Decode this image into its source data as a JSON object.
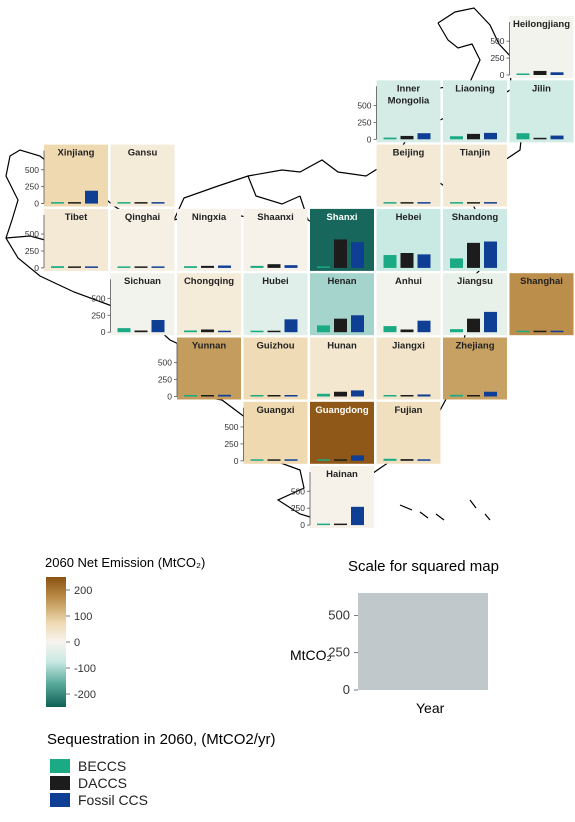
{
  "chart_data": {
    "type": "bar",
    "grid_map": true,
    "categories": [
      "BECCS",
      "DACCS",
      "Fossil CCS"
    ],
    "ylim": [
      0,
      650
    ],
    "yticks": [
      0,
      250,
      500
    ],
    "series_colors": {
      "BECCS": "#1aaa84",
      "DACCS": "#1c1c1c",
      "Fossil CCS": "#0f3e95"
    },
    "colorbar": {
      "title": "2060 Net Emission (MtCO₂)",
      "ticks": [
        200,
        100,
        0,
        -100,
        -200
      ],
      "tick_labels": [
        "200",
        "100",
        "0",
        "-100",
        "-200"
      ]
    },
    "provinces": [
      {
        "name": "Heilongjiang",
        "col": 7,
        "row": 0,
        "net": -5,
        "axis": true,
        "values": [
          20,
          60,
          40
        ]
      },
      {
        "name": "Inner Mongolia",
        "col": 5,
        "row": 1,
        "net": -45,
        "axis": true,
        "values": [
          25,
          50,
          90
        ]
      },
      {
        "name": "Liaoning",
        "col": 6,
        "row": 1,
        "net": -45,
        "axis": false,
        "values": [
          45,
          80,
          95
        ]
      },
      {
        "name": "Jilin",
        "col": 7,
        "row": 1,
        "net": -50,
        "axis": false,
        "values": [
          90,
          20,
          55
        ]
      },
      {
        "name": "Xinjiang",
        "col": 0,
        "row": 2,
        "net": 60,
        "axis": true,
        "values": [
          15,
          15,
          190
        ]
      },
      {
        "name": "Gansu",
        "col": 1,
        "row": 2,
        "net": 20,
        "axis": false,
        "values": [
          8,
          5,
          15
        ]
      },
      {
        "name": "Beijing",
        "col": 5,
        "row": 2,
        "net": 25,
        "axis": false,
        "values": [
          5,
          5,
          8
        ]
      },
      {
        "name": "Tianjin",
        "col": 6,
        "row": 2,
        "net": 25,
        "axis": false,
        "values": [
          5,
          5,
          5
        ]
      },
      {
        "name": "Tibet",
        "col": 0,
        "row": 3,
        "net": 25,
        "axis": true,
        "values": [
          25,
          5,
          10
        ]
      },
      {
        "name": "Qinghai",
        "col": 1,
        "row": 3,
        "net": 10,
        "axis": false,
        "values": [
          15,
          5,
          8
        ]
      },
      {
        "name": "Ningxia",
        "col": 2,
        "row": 3,
        "net": 5,
        "axis": false,
        "values": [
          25,
          30,
          35
        ]
      },
      {
        "name": "Shaanxi",
        "col": 3,
        "row": 3,
        "net": 5,
        "axis": false,
        "values": [
          30,
          55,
          40
        ]
      },
      {
        "name": "Shanxi",
        "col": 4,
        "row": 3,
        "net": -240,
        "axis": false,
        "values": [
          20,
          420,
          380
        ]
      },
      {
        "name": "Hebei",
        "col": 5,
        "row": 3,
        "net": -60,
        "axis": false,
        "values": [
          190,
          220,
          200
        ]
      },
      {
        "name": "Shandong",
        "col": 6,
        "row": 3,
        "net": -55,
        "axis": false,
        "values": [
          140,
          370,
          390
        ]
      },
      {
        "name": "Sichuan",
        "col": 1,
        "row": 4,
        "net": -5,
        "axis": true,
        "values": [
          60,
          25,
          180
        ]
      },
      {
        "name": "Chongqing",
        "col": 2,
        "row": 4,
        "net": 20,
        "axis": false,
        "values": [
          25,
          40,
          20
        ]
      },
      {
        "name": "Hubei",
        "col": 3,
        "row": 4,
        "net": -30,
        "axis": false,
        "values": [
          15,
          20,
          190
        ]
      },
      {
        "name": "Henan",
        "col": 4,
        "row": 4,
        "net": -90,
        "axis": false,
        "values": [
          100,
          200,
          250
        ]
      },
      {
        "name": "Anhui",
        "col": 5,
        "row": 4,
        "net": -5,
        "axis": false,
        "values": [
          90,
          40,
          170
        ]
      },
      {
        "name": "Jiangsu",
        "col": 6,
        "row": 4,
        "net": -20,
        "axis": false,
        "values": [
          45,
          200,
          300
        ]
      },
      {
        "name": "Shanghai",
        "col": 7,
        "row": 4,
        "net": 145,
        "axis": false,
        "values": [
          5,
          5,
          15
        ]
      },
      {
        "name": "Yunnan",
        "col": 2,
        "row": 5,
        "net": 130,
        "axis": true,
        "values": [
          15,
          5,
          25
        ]
      },
      {
        "name": "Guizhou",
        "col": 3,
        "row": 5,
        "net": 55,
        "axis": false,
        "values": [
          20,
          20,
          20
        ]
      },
      {
        "name": "Hunan",
        "col": 4,
        "row": 5,
        "net": 30,
        "axis": false,
        "values": [
          40,
          70,
          90
        ]
      },
      {
        "name": "Jiangxi",
        "col": 5,
        "row": 5,
        "net": 35,
        "axis": false,
        "values": [
          20,
          20,
          30
        ]
      },
      {
        "name": "Zhejiang",
        "col": 6,
        "row": 5,
        "net": 125,
        "axis": false,
        "values": [
          25,
          5,
          70
        ]
      },
      {
        "name": "Guangxi",
        "col": 3,
        "row": 6,
        "net": 60,
        "axis": true,
        "values": [
          20,
          10,
          20
        ]
      },
      {
        "name": "Guangdong",
        "col": 4,
        "row": 6,
        "net": 240,
        "axis": false,
        "values": [
          10,
          10,
          80
        ]
      },
      {
        "name": "Fujian",
        "col": 5,
        "row": 6,
        "net": 45,
        "axis": false,
        "values": [
          30,
          25,
          20
        ]
      },
      {
        "name": "Hainan",
        "col": 4,
        "row": 7,
        "net": 5,
        "axis": true,
        "values": [
          15,
          5,
          270
        ]
      }
    ]
  },
  "scale": {
    "title": "Scale for squared map",
    "ylabel": "MtCO₂",
    "xlabel": "Year",
    "ticks": [
      500,
      250,
      0
    ]
  },
  "sequestration": {
    "title": "Sequestration in 2060, (MtCO2/yr)",
    "items": [
      {
        "label": "BECCS",
        "color": "#1aaa84"
      },
      {
        "label": "DACCS",
        "color": "#1c1c1c"
      },
      {
        "label": "Fossil CCS",
        "color": "#0f3e95"
      }
    ]
  }
}
